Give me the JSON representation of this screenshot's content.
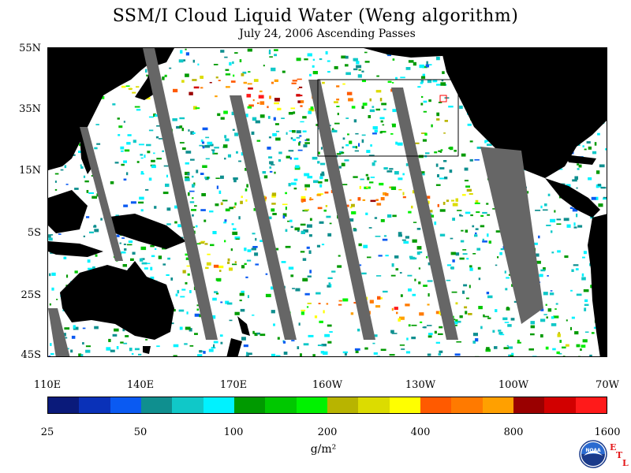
{
  "title": "SSM/I Cloud Liquid Water (Weng algorithm)",
  "subtitle": "July 24, 2006  Ascending Passes",
  "map": {
    "lat_labels": [
      "55N",
      "35N",
      "15N",
      "5S",
      "25S",
      "45S"
    ],
    "lon_labels": [
      "110E",
      "140E",
      "170E",
      "160W",
      "130W",
      "100W",
      "70W"
    ],
    "colors": {
      "land": "#000000",
      "ocean_clear": "#ffffff",
      "no_data_swath": "#666666",
      "region_box": "#000000",
      "small_box": "#ff0000"
    }
  },
  "colorbar": {
    "colors": [
      "#0a1a7a",
      "#0a31b8",
      "#0a5af2",
      "#0f8f8f",
      "#10c8c8",
      "#00f2ff",
      "#009a00",
      "#00c800",
      "#00f200",
      "#b8b400",
      "#dcdc00",
      "#ffff00",
      "#ff5a00",
      "#ff7a00",
      "#ffa000",
      "#9a0000",
      "#d20000",
      "#ff1a1a"
    ],
    "tick_labels": [
      "25",
      "50",
      "100",
      "200",
      "400",
      "800",
      "1600"
    ],
    "units": "g/m²"
  },
  "logo": {
    "text": "NOAA",
    "icon": "noaa-logo-icon",
    "etl": [
      "E",
      "T",
      "L"
    ]
  }
}
